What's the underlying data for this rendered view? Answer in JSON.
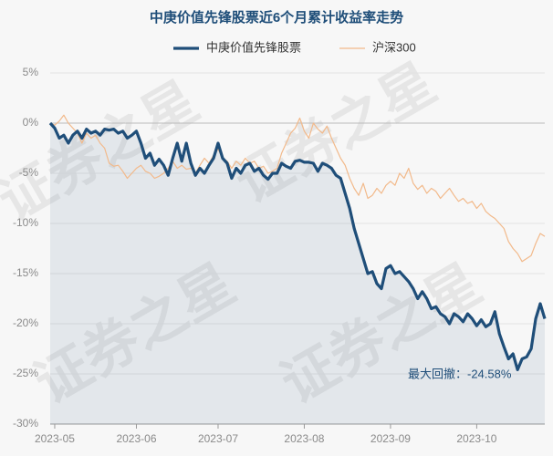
{
  "chart_data": {
    "type": "line",
    "title": "中庚价值先锋股票近6个月累计收益率走势",
    "annotation": "最大回撤：-24.58%",
    "watermark": "证券之星",
    "x": [
      null,
      "2023-05",
      null,
      null,
      null,
      null,
      null,
      null,
      null,
      null,
      null,
      null,
      null,
      null,
      null,
      null,
      null,
      null,
      null,
      "2023-06",
      null,
      null,
      null,
      null,
      null,
      null,
      null,
      null,
      null,
      null,
      null,
      null,
      null,
      null,
      null,
      null,
      null,
      "2023-07",
      null,
      null,
      null,
      null,
      null,
      null,
      null,
      null,
      null,
      null,
      null,
      null,
      null,
      null,
      null,
      null,
      null,
      null,
      "2023-08",
      null,
      null,
      null,
      null,
      null,
      null,
      null,
      null,
      null,
      null,
      null,
      null,
      null,
      null,
      null,
      null,
      null,
      null,
      "2023-09",
      null,
      null,
      null,
      null,
      null,
      null,
      null,
      null,
      null,
      null,
      null,
      null,
      null,
      null,
      null,
      null,
      null,
      null,
      "2023-10",
      null,
      null,
      null,
      null,
      null,
      null,
      null,
      null,
      null,
      null,
      null,
      null,
      null,
      null,
      null
    ],
    "series": [
      {
        "name": "中庚价值先锋股票",
        "color": "#1f4e79",
        "values": [
          0,
          -0.5,
          -1.5,
          -1.2,
          -2.0,
          -1.2,
          -0.8,
          -1.5,
          -0.6,
          -1.0,
          -0.8,
          -1.2,
          -0.6,
          -0.7,
          -0.6,
          -1.0,
          -0.8,
          -1.5,
          -1.2,
          -0.8,
          -2.0,
          -3.5,
          -3.0,
          -4.2,
          -3.6,
          -4.2,
          -5.2,
          -3.5,
          -2.0,
          -3.8,
          -2.0,
          -4.0,
          -5.2,
          -4.5,
          -5.0,
          -4.2,
          -3.5,
          -2.0,
          -3.5,
          -4.0,
          -5.5,
          -4.5,
          -5.0,
          -4.2,
          -4.0,
          -4.8,
          -4.5,
          -5.2,
          -5.6,
          -5.0,
          -5.0,
          -4.0,
          -4.3,
          -4.5,
          -3.8,
          -3.7,
          -3.9,
          -3.9,
          -4.0,
          -4.8,
          -4.0,
          -4.2,
          -4.5,
          -5.2,
          -5.5,
          -7.0,
          -8.5,
          -10.5,
          -12.0,
          -13.5,
          -15.0,
          -14.8,
          -16.0,
          -16.5,
          -14.5,
          -14.2,
          -15.0,
          -14.8,
          -15.3,
          -15.8,
          -16.5,
          -17.5,
          -16.8,
          -17.5,
          -18.5,
          -18.3,
          -19.0,
          -19.3,
          -20.0,
          -19.0,
          -19.3,
          -19.8,
          -19.0,
          -19.5,
          -20.2,
          -19.6,
          -20.3,
          -20.0,
          -18.8,
          -21.0,
          -22.3,
          -23.5,
          -23.0,
          -24.58,
          -23.5,
          -23.3,
          -22.5,
          -19.5,
          -18.0,
          -19.5
        ]
      },
      {
        "name": "沪深300",
        "color": "#f2b98a",
        "values": [
          0,
          -0.2,
          0.2,
          0.8,
          0.0,
          -0.5,
          -1.0,
          -2.0,
          -1.0,
          -1.5,
          -1.2,
          -2.0,
          -2.5,
          -4.0,
          -4.3,
          -4.2,
          -4.8,
          -5.5,
          -5.0,
          -4.5,
          -4.2,
          -4.8,
          -5.0,
          -5.5,
          -5.3,
          -5.0,
          -4.5,
          -3.8,
          -4.5,
          -4.2,
          -4.6,
          -4.5,
          -5.0,
          -4.2,
          -3.5,
          -4.0,
          -3.2,
          -2.6,
          -3.5,
          -3.8,
          -4.5,
          -3.8,
          -4.2,
          -3.5,
          -4.0,
          -3.8,
          -4.5,
          -4.3,
          -5.0,
          -4.8,
          -4.5,
          -3.0,
          -2.0,
          -1.0,
          -0.5,
          0.5,
          -0.8,
          -1.5,
          0.0,
          -0.6,
          -1.0,
          -0.3,
          -1.5,
          -2.5,
          -3.5,
          -4.2,
          -5.5,
          -6.5,
          -7.2,
          -6.0,
          -7.5,
          -7.2,
          -6.5,
          -7.0,
          -6.2,
          -5.8,
          -6.2,
          -5.0,
          -5.5,
          -4.5,
          -6.0,
          -6.6,
          -6.2,
          -7.0,
          -6.5,
          -6.8,
          -7.5,
          -7.0,
          -6.5,
          -7.2,
          -7.8,
          -7.5,
          -8.0,
          -7.8,
          -8.5,
          -8.0,
          -8.8,
          -9.2,
          -9.5,
          -10.0,
          -10.5,
          -11.8,
          -12.5,
          -13.0,
          -13.8,
          -13.5,
          -13.2,
          -12.0,
          -11.0,
          -11.3
        ]
      }
    ],
    "ylim": [
      -30,
      5
    ],
    "yticks": [
      {
        "value": 5,
        "label": "5%"
      },
      {
        "value": 0,
        "label": "0%"
      },
      {
        "value": -5,
        "label": "-5%"
      },
      {
        "value": -10,
        "label": "-10%"
      },
      {
        "value": -15,
        "label": "-15%"
      },
      {
        "value": -20,
        "label": "-20%"
      },
      {
        "value": -25,
        "label": "-25%"
      },
      {
        "value": -30,
        "label": "-30%"
      }
    ],
    "grid": true
  }
}
